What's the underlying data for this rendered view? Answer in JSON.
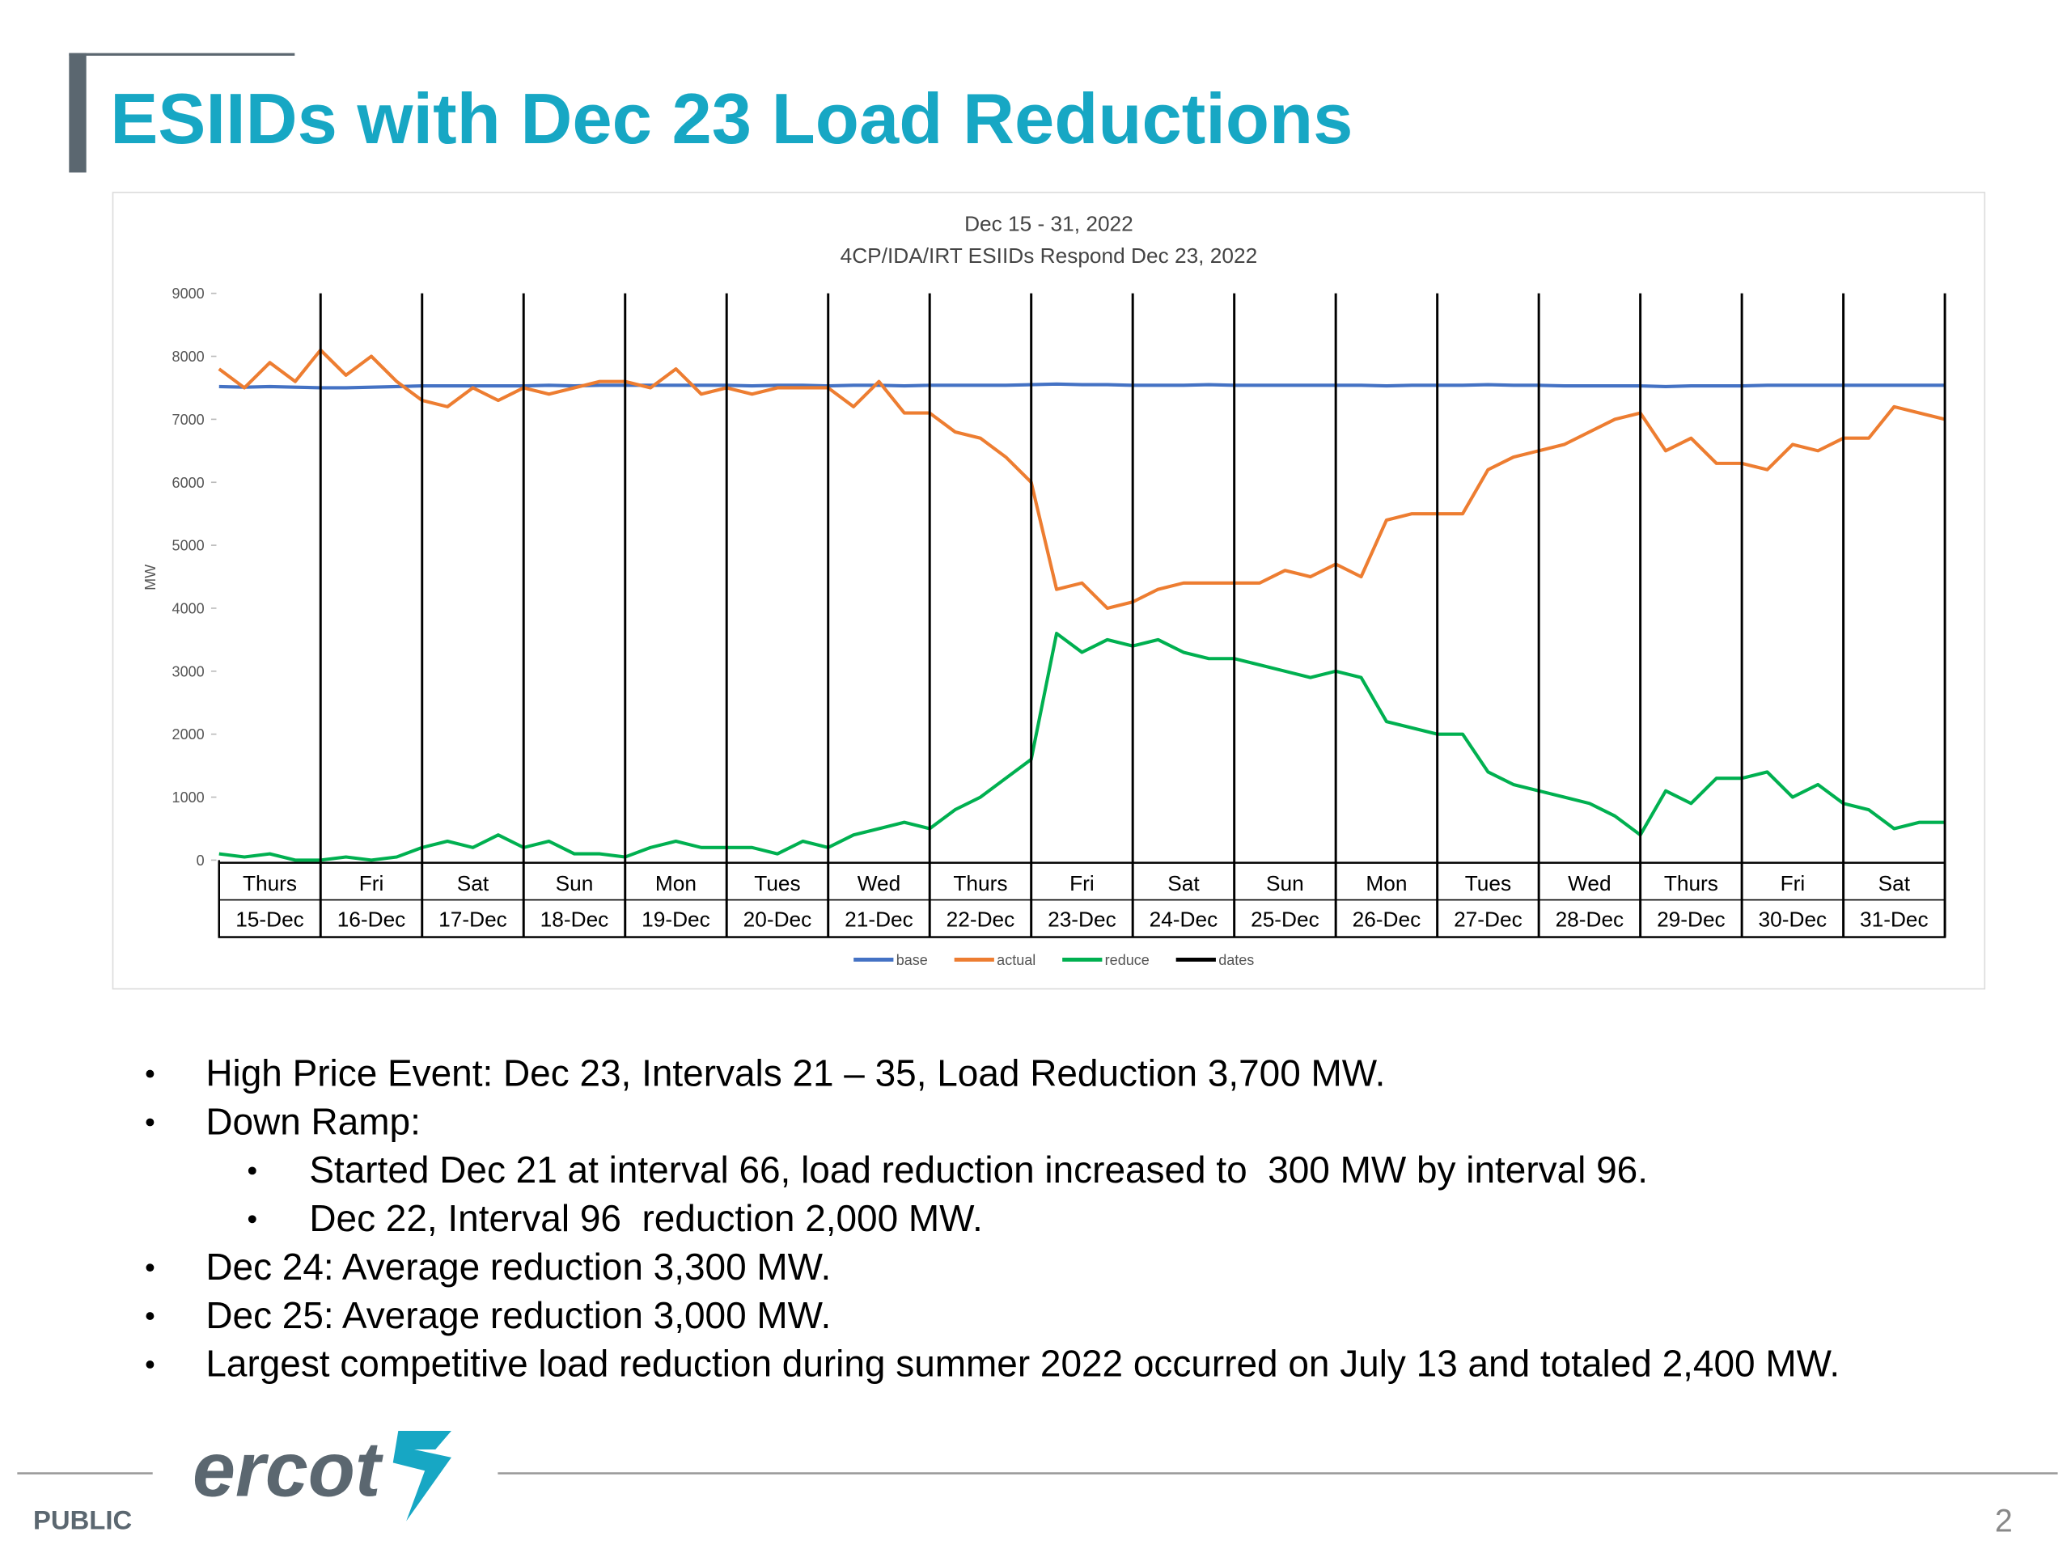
{
  "header": {
    "title": "ESIIDs with Dec 23 Load Reductions"
  },
  "chart_data": {
    "type": "line",
    "title": "Dec 15 - 31, 2022",
    "subtitle": "4CP/IDA/IRT ESIIDs Respond Dec 23, 2022",
    "y_label": "MW",
    "xlim": [
      0,
      17
    ],
    "ylim": [
      0,
      9000
    ],
    "yticks": [
      0,
      1000,
      2000,
      3000,
      4000,
      5000,
      6000,
      7000,
      8000,
      9000
    ],
    "x_tick_weekdays": [
      "Thurs",
      "Fri",
      "Sat",
      "Sun",
      "Mon",
      "Tues",
      "Wed",
      "Thurs",
      "Fri",
      "Sat",
      "Sun",
      "Mon",
      "Tues",
      "Wed",
      "Thurs",
      "Fri",
      "Sat"
    ],
    "x_tick_dates": [
      "15-Dec",
      "16-Dec",
      "17-Dec",
      "18-Dec",
      "19-Dec",
      "20-Dec",
      "21-Dec",
      "22-Dec",
      "23-Dec",
      "24-Dec",
      "25-Dec",
      "26-Dec",
      "27-Dec",
      "28-Dec",
      "29-Dec",
      "30-Dec",
      "31-Dec"
    ],
    "x": [
      0,
      0.25,
      0.5,
      0.75,
      1,
      1.25,
      1.5,
      1.75,
      2,
      2.25,
      2.5,
      2.75,
      3,
      3.25,
      3.5,
      3.75,
      4,
      4.25,
      4.5,
      4.75,
      5,
      5.25,
      5.5,
      5.75,
      6,
      6.25,
      6.5,
      6.75,
      7,
      7.25,
      7.5,
      7.75,
      8,
      8.25,
      8.5,
      8.75,
      9,
      9.25,
      9.5,
      9.75,
      10,
      10.25,
      10.5,
      10.75,
      11,
      11.25,
      11.5,
      11.75,
      12,
      12.25,
      12.5,
      12.75,
      13,
      13.25,
      13.5,
      13.75,
      14,
      14.25,
      14.5,
      14.75,
      15,
      15.25,
      15.5,
      15.75,
      16,
      16.25,
      16.5,
      16.75,
      17
    ],
    "series": [
      {
        "name": "base",
        "color": "#4472c4",
        "values": [
          7520,
          7510,
          7520,
          7510,
          7500,
          7500,
          7510,
          7520,
          7530,
          7530,
          7530,
          7530,
          7530,
          7540,
          7530,
          7540,
          7540,
          7540,
          7540,
          7540,
          7540,
          7530,
          7540,
          7540,
          7530,
          7540,
          7540,
          7530,
          7540,
          7540,
          7540,
          7540,
          7550,
          7560,
          7550,
          7550,
          7540,
          7540,
          7540,
          7550,
          7540,
          7540,
          7540,
          7540,
          7540,
          7540,
          7530,
          7540,
          7540,
          7540,
          7550,
          7540,
          7540,
          7530,
          7530,
          7530,
          7530,
          7520,
          7530,
          7530,
          7530,
          7540,
          7540,
          7540,
          7540,
          7540,
          7540,
          7540,
          7540
        ]
      },
      {
        "name": "actual",
        "color": "#ed7d31",
        "values": [
          7800,
          7500,
          7900,
          7600,
          8100,
          7700,
          8000,
          7600,
          7300,
          7200,
          7500,
          7300,
          7500,
          7400,
          7500,
          7600,
          7600,
          7500,
          7800,
          7400,
          7500,
          7400,
          7500,
          7500,
          7500,
          7200,
          7600,
          7100,
          7100,
          6800,
          6700,
          6400,
          6000,
          4300,
          4400,
          4000,
          4100,
          4300,
          4400,
          4400,
          4400,
          4400,
          4600,
          4500,
          4700,
          4500,
          5400,
          5500,
          5500,
          5500,
          6200,
          6400,
          6500,
          6600,
          6800,
          7000,
          7100,
          6500,
          6700,
          6300,
          6300,
          6200,
          6600,
          6500,
          6700,
          6700,
          7200,
          7100,
          7000
        ]
      },
      {
        "name": "reduce",
        "color": "#00b050",
        "values": [
          100,
          50,
          100,
          0,
          0,
          50,
          0,
          50,
          200,
          300,
          200,
          400,
          200,
          300,
          100,
          100,
          50,
          200,
          300,
          200,
          200,
          200,
          100,
          300,
          200,
          400,
          500,
          600,
          500,
          800,
          1000,
          1300,
          1600,
          3600,
          3300,
          3500,
          3400,
          3500,
          3300,
          3200,
          3200,
          3100,
          3000,
          2900,
          3000,
          2900,
          2200,
          2100,
          2000,
          2000,
          1400,
          1200,
          1100,
          1000,
          900,
          700,
          400,
          1100,
          900,
          1300,
          1300,
          1400,
          1000,
          1200,
          900,
          800,
          500,
          600,
          600
        ]
      },
      {
        "name": "dates",
        "color": "#000000",
        "x": [
          1,
          2,
          3,
          4,
          5,
          6,
          7,
          8,
          9,
          10,
          11,
          12,
          13,
          14,
          15,
          16,
          17
        ]
      }
    ]
  },
  "bullets": [
    {
      "text": "High Price Event: Dec 23, Intervals 21 – 35, Load Reduction 3,700 MW."
    },
    {
      "text": "Down Ramp:",
      "sub": [
        "Started Dec 21 at interval 66, load reduction increased to  300 MW by interval 96.",
        "Dec 22, Interval 96  reduction 2,000 MW."
      ]
    },
    {
      "text": "Dec 24: Average reduction 3,300 MW."
    },
    {
      "text": "Dec 25: Average reduction 3,000 MW."
    },
    {
      "text": "Largest competitive load reduction during summer 2022 occurred on July 13 and totaled 2,400 MW."
    }
  ],
  "footer": {
    "logo": "ercot",
    "label": "PUBLIC",
    "page": "2"
  }
}
